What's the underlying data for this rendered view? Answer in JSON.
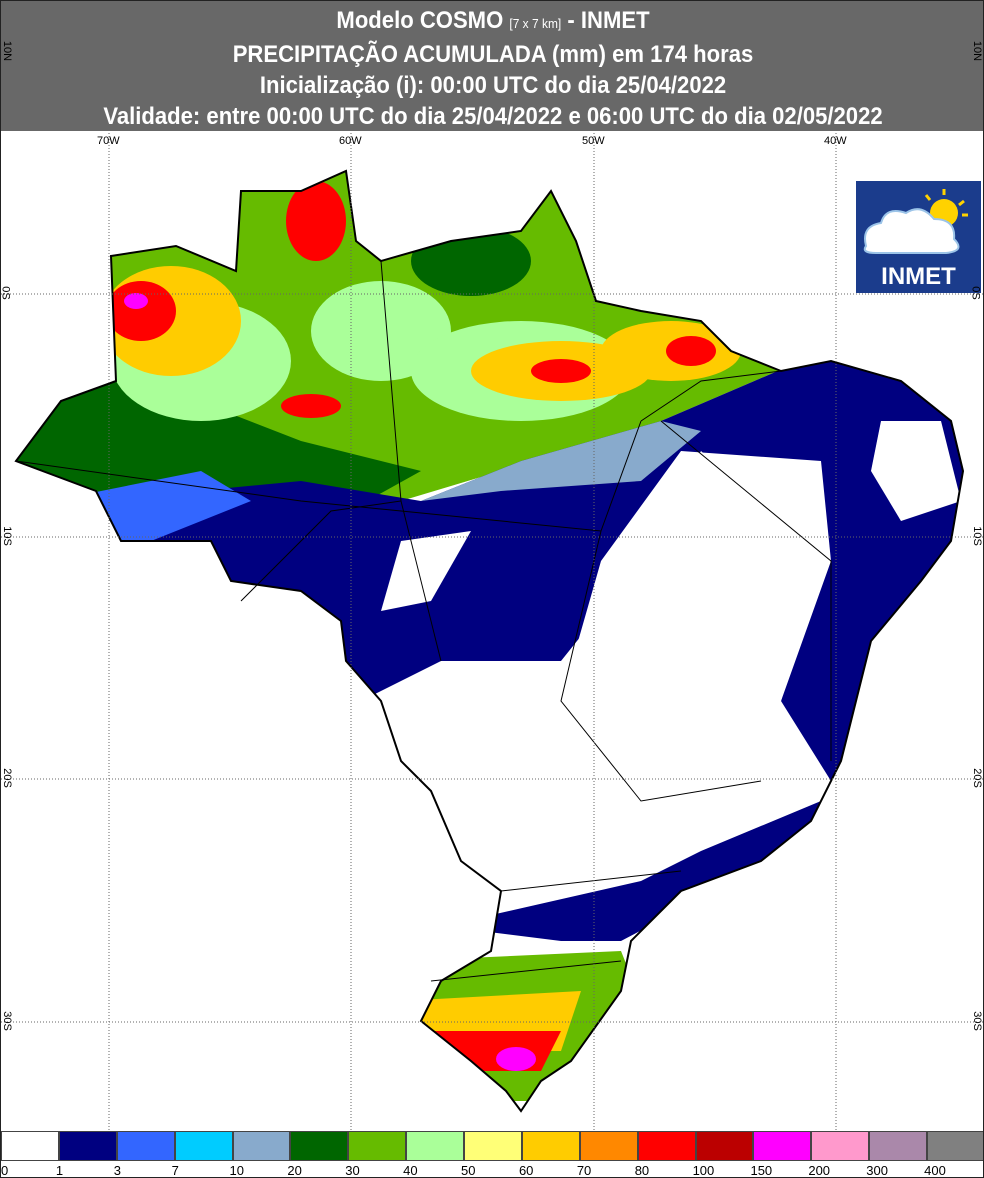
{
  "header": {
    "line1_a": "Modelo COSMO",
    "line1_small": "[7 x 7 km]",
    "line1_b": "- INMET",
    "line2": "PRECIPITAÇÃO ACUMULADA (mm) em 174 horas",
    "line3": "Inicialização (i): 00:00 UTC do dia 25/04/2022",
    "line4": "Validade: entre 00:00 UTC do dia 25/04/2022 e 06:00 UTC do dia 02/05/2022"
  },
  "grid": {
    "lon": [
      "70W",
      "60W",
      "50W",
      "40W"
    ],
    "lat": [
      "10N",
      "0S",
      "10S",
      "20S",
      "30S"
    ]
  },
  "logo": {
    "text": "INMET",
    "icon": "cloud-sun-icon"
  },
  "legend": {
    "labels": [
      "0",
      "1",
      "3",
      "7",
      "10",
      "20",
      "30",
      "40",
      "50",
      "60",
      "70",
      "80",
      "100",
      "150",
      "200",
      "300",
      "400"
    ],
    "colors": [
      "#ffffff",
      "#000080",
      "#3366ff",
      "#00ccff",
      "#88aacc",
      "#006600",
      "#66bb00",
      "#aaff99",
      "#ffff77",
      "#ffcc00",
      "#ff8800",
      "#ff0000",
      "#bb0000",
      "#ff00ff",
      "#ff99cc",
      "#aa88aa",
      "#808080"
    ]
  }
}
